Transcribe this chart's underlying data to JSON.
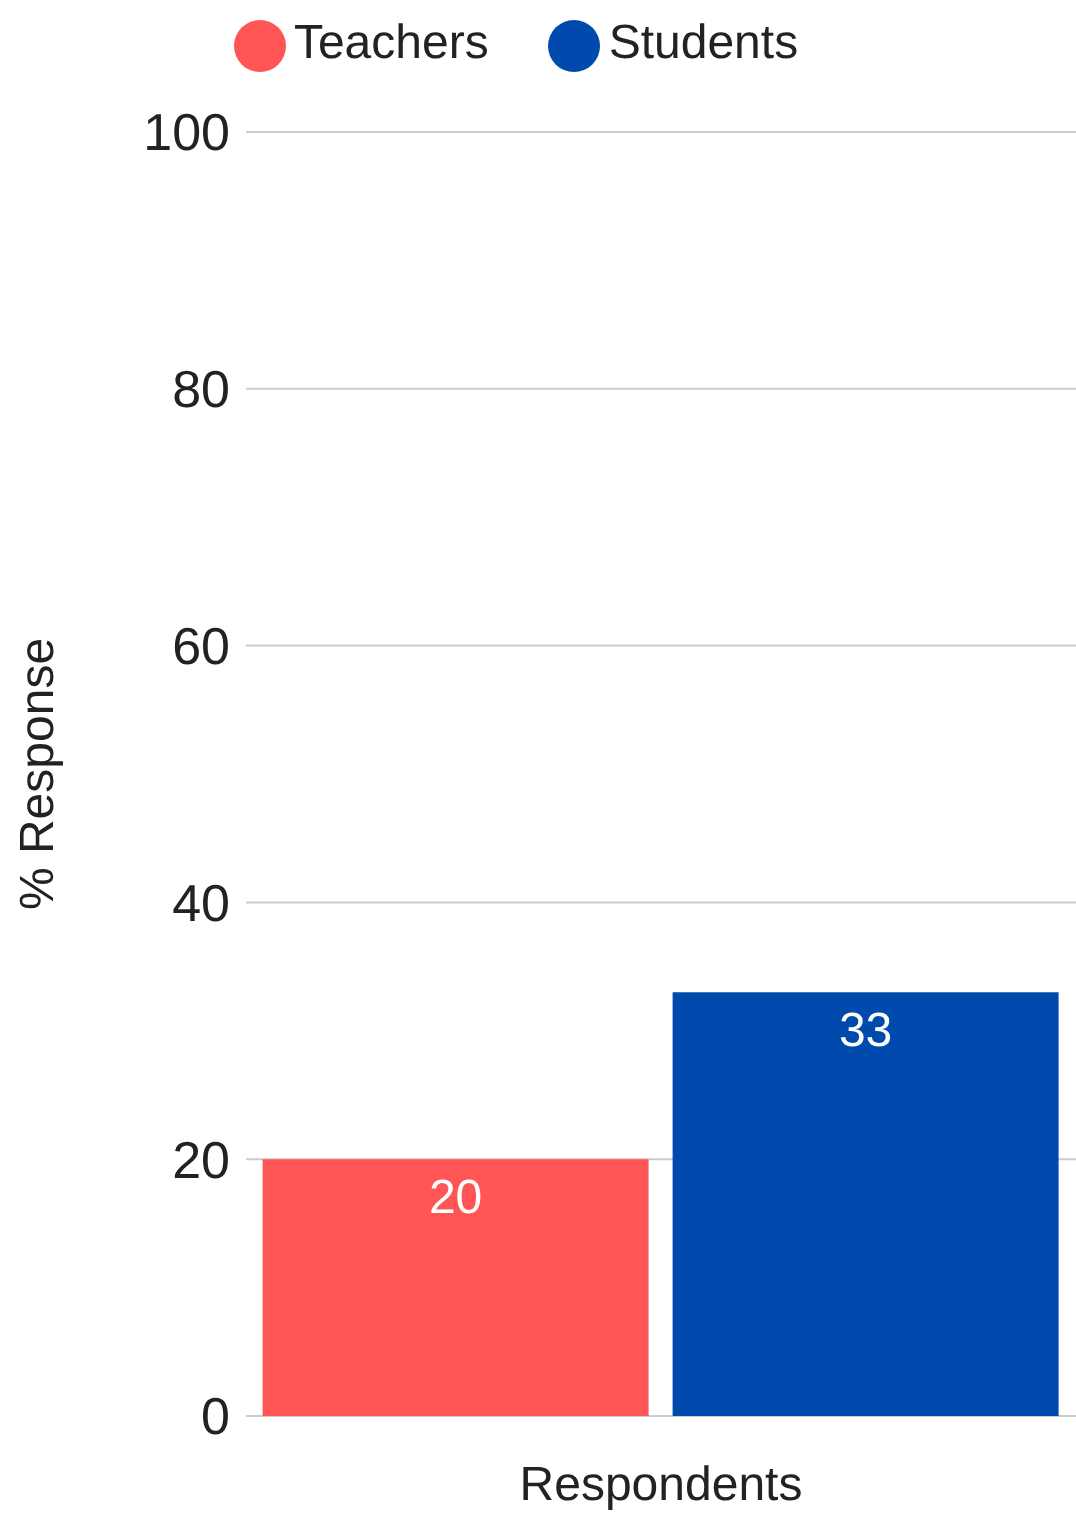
{
  "chart_data": {
    "type": "bar",
    "ylabel": "% Response",
    "xlabel": "Respondents",
    "categories": [
      null
    ],
    "series": [
      {
        "name": "Teachers",
        "color": "#ff5555",
        "values": [
          20
        ]
      },
      {
        "name": "Students",
        "color": "#004aad",
        "values": [
          33
        ]
      }
    ],
    "ylim": [
      0,
      100
    ],
    "yticks": [
      0,
      20,
      40,
      60,
      80,
      100
    ],
    "grid": "y",
    "legend": "top",
    "data_labels": true
  }
}
